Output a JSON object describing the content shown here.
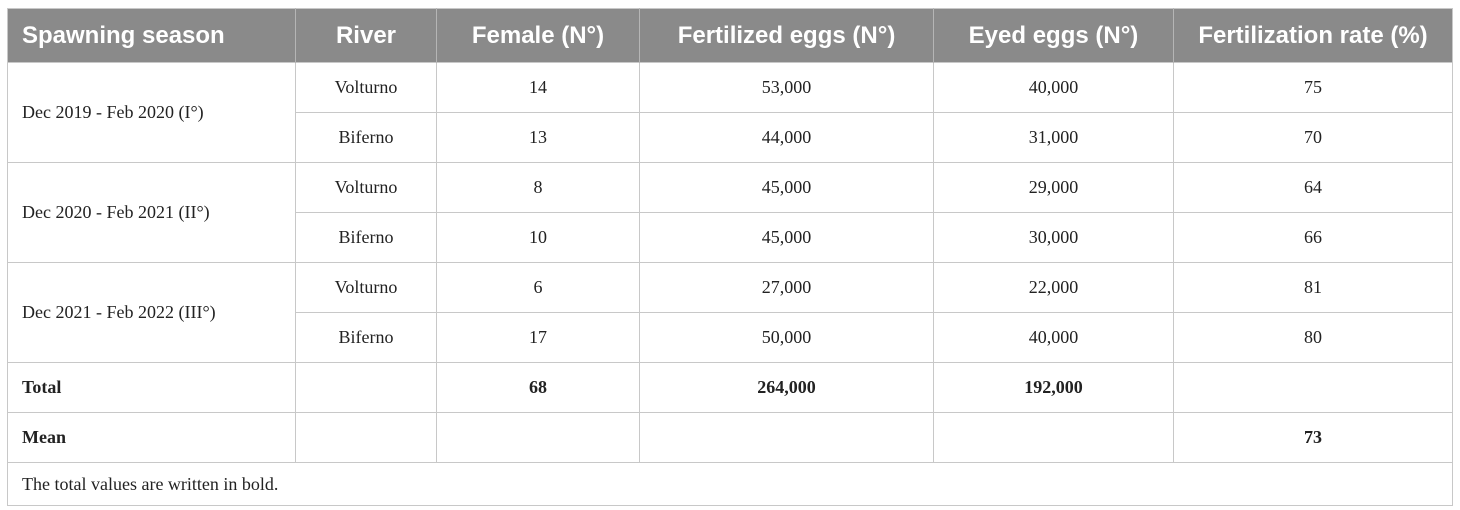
{
  "table": {
    "headers": [
      "Spawning season",
      "River",
      "Female (N°)",
      "Fertilized eggs (N°)",
      "Eyed eggs (N°)",
      "Fertilization rate (%)"
    ],
    "groups": [
      {
        "season": "Dec 2019 - Feb 2020 (I°)",
        "rows": [
          {
            "river": "Volturno",
            "female": "14",
            "fertilized": "53,000",
            "eyed": "40,000",
            "rate": "75"
          },
          {
            "river": "Biferno",
            "female": "13",
            "fertilized": "44,000",
            "eyed": "31,000",
            "rate": "70"
          }
        ]
      },
      {
        "season": "Dec 2020 - Feb 2021 (II°)",
        "rows": [
          {
            "river": "Volturno",
            "female": "8",
            "fertilized": "45,000",
            "eyed": "29,000",
            "rate": "64"
          },
          {
            "river": "Biferno",
            "female": "10",
            "fertilized": "45,000",
            "eyed": "30,000",
            "rate": "66"
          }
        ]
      },
      {
        "season": "Dec 2021 - Feb 2022 (III°)",
        "rows": [
          {
            "river": "Volturno",
            "female": "6",
            "fertilized": "27,000",
            "eyed": "22,000",
            "rate": "81"
          },
          {
            "river": "Biferno",
            "female": "17",
            "fertilized": "50,000",
            "eyed": "40,000",
            "rate": "80"
          }
        ]
      }
    ],
    "total": {
      "label": "Total",
      "female": "68",
      "fertilized": "264,000",
      "eyed": "192,000"
    },
    "mean": {
      "label": "Mean",
      "rate": "73"
    },
    "footnote": "The total values are written in bold."
  },
  "colors": {
    "header_bg": "#8a8a8a",
    "header_text": "#ffffff",
    "grid": "#c8c8c8"
  }
}
